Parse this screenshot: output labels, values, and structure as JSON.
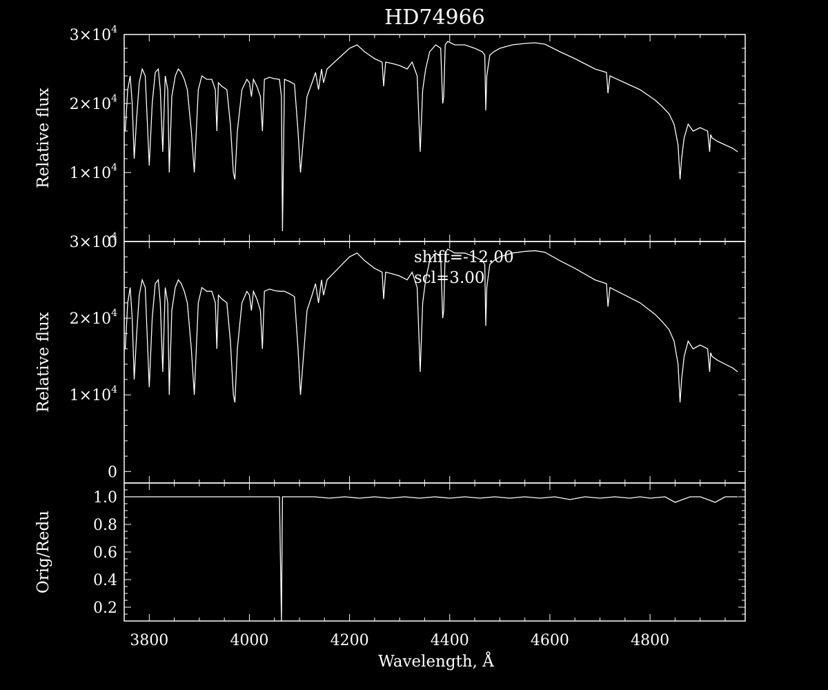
{
  "chart_data": [
    {
      "type": "line",
      "panel": "top",
      "title": "HD74966",
      "ylabel": "Relative flux",
      "xlabel": "",
      "xlim": [
        3750,
        4990
      ],
      "ylim": [
        0,
        30000
      ],
      "xticks": [
        3800,
        4000,
        4200,
        4400,
        4600,
        4800
      ],
      "yticks": [
        {
          "value": 0,
          "mantissa": "0",
          "exp": ""
        },
        {
          "value": 10000,
          "mantissa": "1×10",
          "exp": "4"
        },
        {
          "value": 20000,
          "mantissa": "2×10",
          "exp": "4"
        },
        {
          "value": 30000,
          "mantissa": "3×10",
          "exp": "4"
        }
      ],
      "series": [
        {
          "x": [
            3752,
            3757,
            3762,
            3766,
            3770,
            3775,
            3780,
            3786,
            3792,
            3797,
            3800,
            3806,
            3812,
            3818,
            3822,
            3827,
            3832,
            3837,
            3840,
            3845,
            3852,
            3858,
            3864,
            3870,
            3876,
            3884,
            3890,
            3894,
            3898,
            3905,
            3915,
            3925,
            3932,
            3935,
            3938,
            3945,
            3955,
            3962,
            3968,
            3971,
            3976,
            3985,
            3995,
            4000,
            4004,
            4008,
            4015,
            4022,
            4026,
            4030,
            4040,
            4050,
            4060,
            4064,
            4066,
            4070,
            4080,
            4090,
            4097,
            4102,
            4108,
            4115,
            4125,
            4132,
            4138,
            4144,
            4148,
            4155,
            4170,
            4185,
            4200,
            4215,
            4230,
            4250,
            4265,
            4268,
            4272,
            4285,
            4300,
            4315,
            4325,
            4335,
            4341,
            4346,
            4352,
            4360,
            4372,
            4382,
            4386,
            4388,
            4391,
            4396,
            4410,
            4430,
            4450,
            4465,
            4470,
            4472,
            4474,
            4480,
            4488,
            4500,
            4525,
            4550,
            4570,
            4590,
            4620,
            4650,
            4690,
            4713,
            4716,
            4720,
            4750,
            4780,
            4810,
            4825,
            4838,
            4848,
            4856,
            4860,
            4863,
            4868,
            4876,
            4886,
            4900,
            4915,
            4919,
            4921,
            4924,
            4935,
            4950,
            4965,
            4975
          ],
          "y": [
            16000,
            22000,
            24000,
            20000,
            12000,
            18000,
            23000,
            25000,
            24000,
            16000,
            11000,
            20000,
            24500,
            25000,
            22000,
            13000,
            24000,
            22000,
            10000,
            21000,
            24000,
            25000,
            24500,
            23500,
            22000,
            16000,
            10000,
            16000,
            22000,
            24000,
            23500,
            23500,
            22000,
            16000,
            23000,
            22500,
            22000,
            17000,
            10000,
            9000,
            16000,
            22000,
            23500,
            23000,
            21000,
            23500,
            22500,
            21000,
            16000,
            23500,
            23800,
            23600,
            23500,
            21000,
            1500,
            23500,
            23200,
            22800,
            16000,
            10000,
            15000,
            21000,
            23000,
            24500,
            22000,
            25000,
            23000,
            25000,
            26000,
            27000,
            28000,
            28500,
            27500,
            26500,
            26000,
            22500,
            26000,
            25800,
            25500,
            25000,
            26000,
            24000,
            13000,
            22000,
            25000,
            27500,
            28500,
            28000,
            20000,
            21000,
            28500,
            29000,
            28500,
            28500,
            28000,
            27500,
            27000,
            19000,
            24000,
            27000,
            27500,
            28000,
            28500,
            28700,
            28800,
            28600,
            27500,
            26500,
            25000,
            24500,
            21500,
            24000,
            23000,
            22000,
            20500,
            19500,
            18500,
            17000,
            14000,
            9000,
            12000,
            15000,
            17000,
            16000,
            16500,
            16000,
            13000,
            15500,
            15000,
            14500,
            14000,
            13500,
            13000
          ]
        }
      ]
    },
    {
      "type": "line",
      "panel": "middle",
      "ylabel": "Relative flux",
      "xlabel": "",
      "xlim": [
        3750,
        4990
      ],
      "ylim": [
        -1500,
        30000
      ],
      "xticks": [
        3800,
        4000,
        4200,
        4400,
        4600,
        4800
      ],
      "yticks": [
        {
          "value": 0,
          "mantissa": "0",
          "exp": ""
        },
        {
          "value": 10000,
          "mantissa": "1×10",
          "exp": "4"
        },
        {
          "value": 20000,
          "mantissa": "2×10",
          "exp": "4"
        },
        {
          "value": 30000,
          "mantissa": "3×10",
          "exp": "4"
        }
      ],
      "annotations": [
        "shift=-12.00",
        "scl=3.00"
      ],
      "series": [
        {
          "x": [
            3752,
            3757,
            3762,
            3766,
            3770,
            3775,
            3780,
            3786,
            3792,
            3797,
            3800,
            3806,
            3812,
            3818,
            3822,
            3827,
            3832,
            3837,
            3840,
            3845,
            3852,
            3858,
            3864,
            3870,
            3876,
            3884,
            3890,
            3894,
            3898,
            3905,
            3915,
            3925,
            3932,
            3935,
            3938,
            3945,
            3955,
            3962,
            3968,
            3971,
            3976,
            3985,
            3995,
            4000,
            4004,
            4008,
            4015,
            4022,
            4026,
            4030,
            4040,
            4050,
            4060,
            4070,
            4080,
            4090,
            4097,
            4102,
            4108,
            4115,
            4125,
            4132,
            4138,
            4144,
            4148,
            4155,
            4170,
            4185,
            4200,
            4215,
            4230,
            4250,
            4265,
            4268,
            4272,
            4285,
            4300,
            4315,
            4325,
            4335,
            4341,
            4346,
            4352,
            4360,
            4372,
            4382,
            4386,
            4388,
            4391,
            4396,
            4410,
            4430,
            4450,
            4465,
            4470,
            4472,
            4474,
            4480,
            4488,
            4500,
            4525,
            4550,
            4570,
            4590,
            4620,
            4650,
            4690,
            4713,
            4716,
            4720,
            4750,
            4780,
            4810,
            4825,
            4838,
            4848,
            4856,
            4860,
            4863,
            4868,
            4876,
            4886,
            4900,
            4915,
            4919,
            4921,
            4924,
            4935,
            4950,
            4965,
            4975
          ],
          "y": [
            16000,
            22000,
            24000,
            20000,
            12000,
            18000,
            23000,
            25000,
            24000,
            16000,
            11000,
            20000,
            24500,
            25000,
            22000,
            13000,
            24000,
            22000,
            10000,
            21000,
            24000,
            25000,
            24500,
            23500,
            22000,
            16000,
            10000,
            16000,
            22000,
            24000,
            23500,
            23500,
            22000,
            16000,
            23000,
            22500,
            22000,
            17000,
            10000,
            9000,
            16000,
            22000,
            23500,
            23000,
            21000,
            23500,
            22500,
            21000,
            16000,
            23500,
            23800,
            23600,
            23500,
            23500,
            23200,
            22800,
            16000,
            10000,
            15000,
            21000,
            23000,
            24500,
            22000,
            25000,
            23000,
            25000,
            26000,
            27000,
            28000,
            28500,
            27500,
            26500,
            26000,
            22500,
            26000,
            25800,
            25500,
            25000,
            26000,
            24000,
            13000,
            22000,
            25000,
            27500,
            28500,
            28000,
            20000,
            21000,
            28500,
            29000,
            28500,
            28500,
            28000,
            27500,
            27000,
            19000,
            24000,
            27000,
            27500,
            28000,
            28500,
            28700,
            28800,
            28600,
            27500,
            26500,
            25000,
            24500,
            21500,
            24000,
            23000,
            22000,
            20500,
            19500,
            18500,
            17000,
            14000,
            9000,
            12000,
            15000,
            17000,
            16000,
            16500,
            16000,
            13000,
            15500,
            15000,
            14500,
            14000,
            13500,
            13000
          ]
        }
      ]
    },
    {
      "type": "line",
      "panel": "bottom",
      "ylabel": "Orig/Redu",
      "xlabel": "Wavelength, Å",
      "xlim": [
        3750,
        4990
      ],
      "ylim": [
        0.1,
        1.1
      ],
      "xticks": [
        3800,
        4000,
        4200,
        4400,
        4600,
        4800
      ],
      "yticks": [
        {
          "value": 0.2,
          "mantissa": "0.2",
          "exp": ""
        },
        {
          "value": 0.4,
          "mantissa": "0.4",
          "exp": ""
        },
        {
          "value": 0.6,
          "mantissa": "0.6",
          "exp": ""
        },
        {
          "value": 0.8,
          "mantissa": "0.8",
          "exp": ""
        },
        {
          "value": 1.0,
          "mantissa": "1.0",
          "exp": ""
        }
      ],
      "series": [
        {
          "x": [
            3752,
            3780,
            3800,
            3830,
            3860,
            3890,
            3920,
            3950,
            3980,
            4010,
            4040,
            4060,
            4064,
            4066,
            4070,
            4100,
            4130,
            4160,
            4190,
            4220,
            4250,
            4280,
            4310,
            4340,
            4370,
            4400,
            4430,
            4460,
            4490,
            4520,
            4550,
            4580,
            4610,
            4640,
            4670,
            4700,
            4730,
            4760,
            4780,
            4800,
            4830,
            4850,
            4880,
            4900,
            4930,
            4950,
            4975
          ],
          "y": [
            1.0,
            1.0,
            1.0,
            1.0,
            1.0,
            1.0,
            1.0,
            1.0,
            1.0,
            1.0,
            1.0,
            1.0,
            0.1,
            1.0,
            1.0,
            1.0,
            1.0,
            0.99,
            1.0,
            0.99,
            1.0,
            0.99,
            1.0,
            0.99,
            1.0,
            0.99,
            1.0,
            0.99,
            1.0,
            0.99,
            1.0,
            0.99,
            1.0,
            0.98,
            1.0,
            0.99,
            1.0,
            0.99,
            1.0,
            0.99,
            1.0,
            0.96,
            1.0,
            1.0,
            0.96,
            1.0,
            1.0
          ]
        }
      ]
    }
  ]
}
